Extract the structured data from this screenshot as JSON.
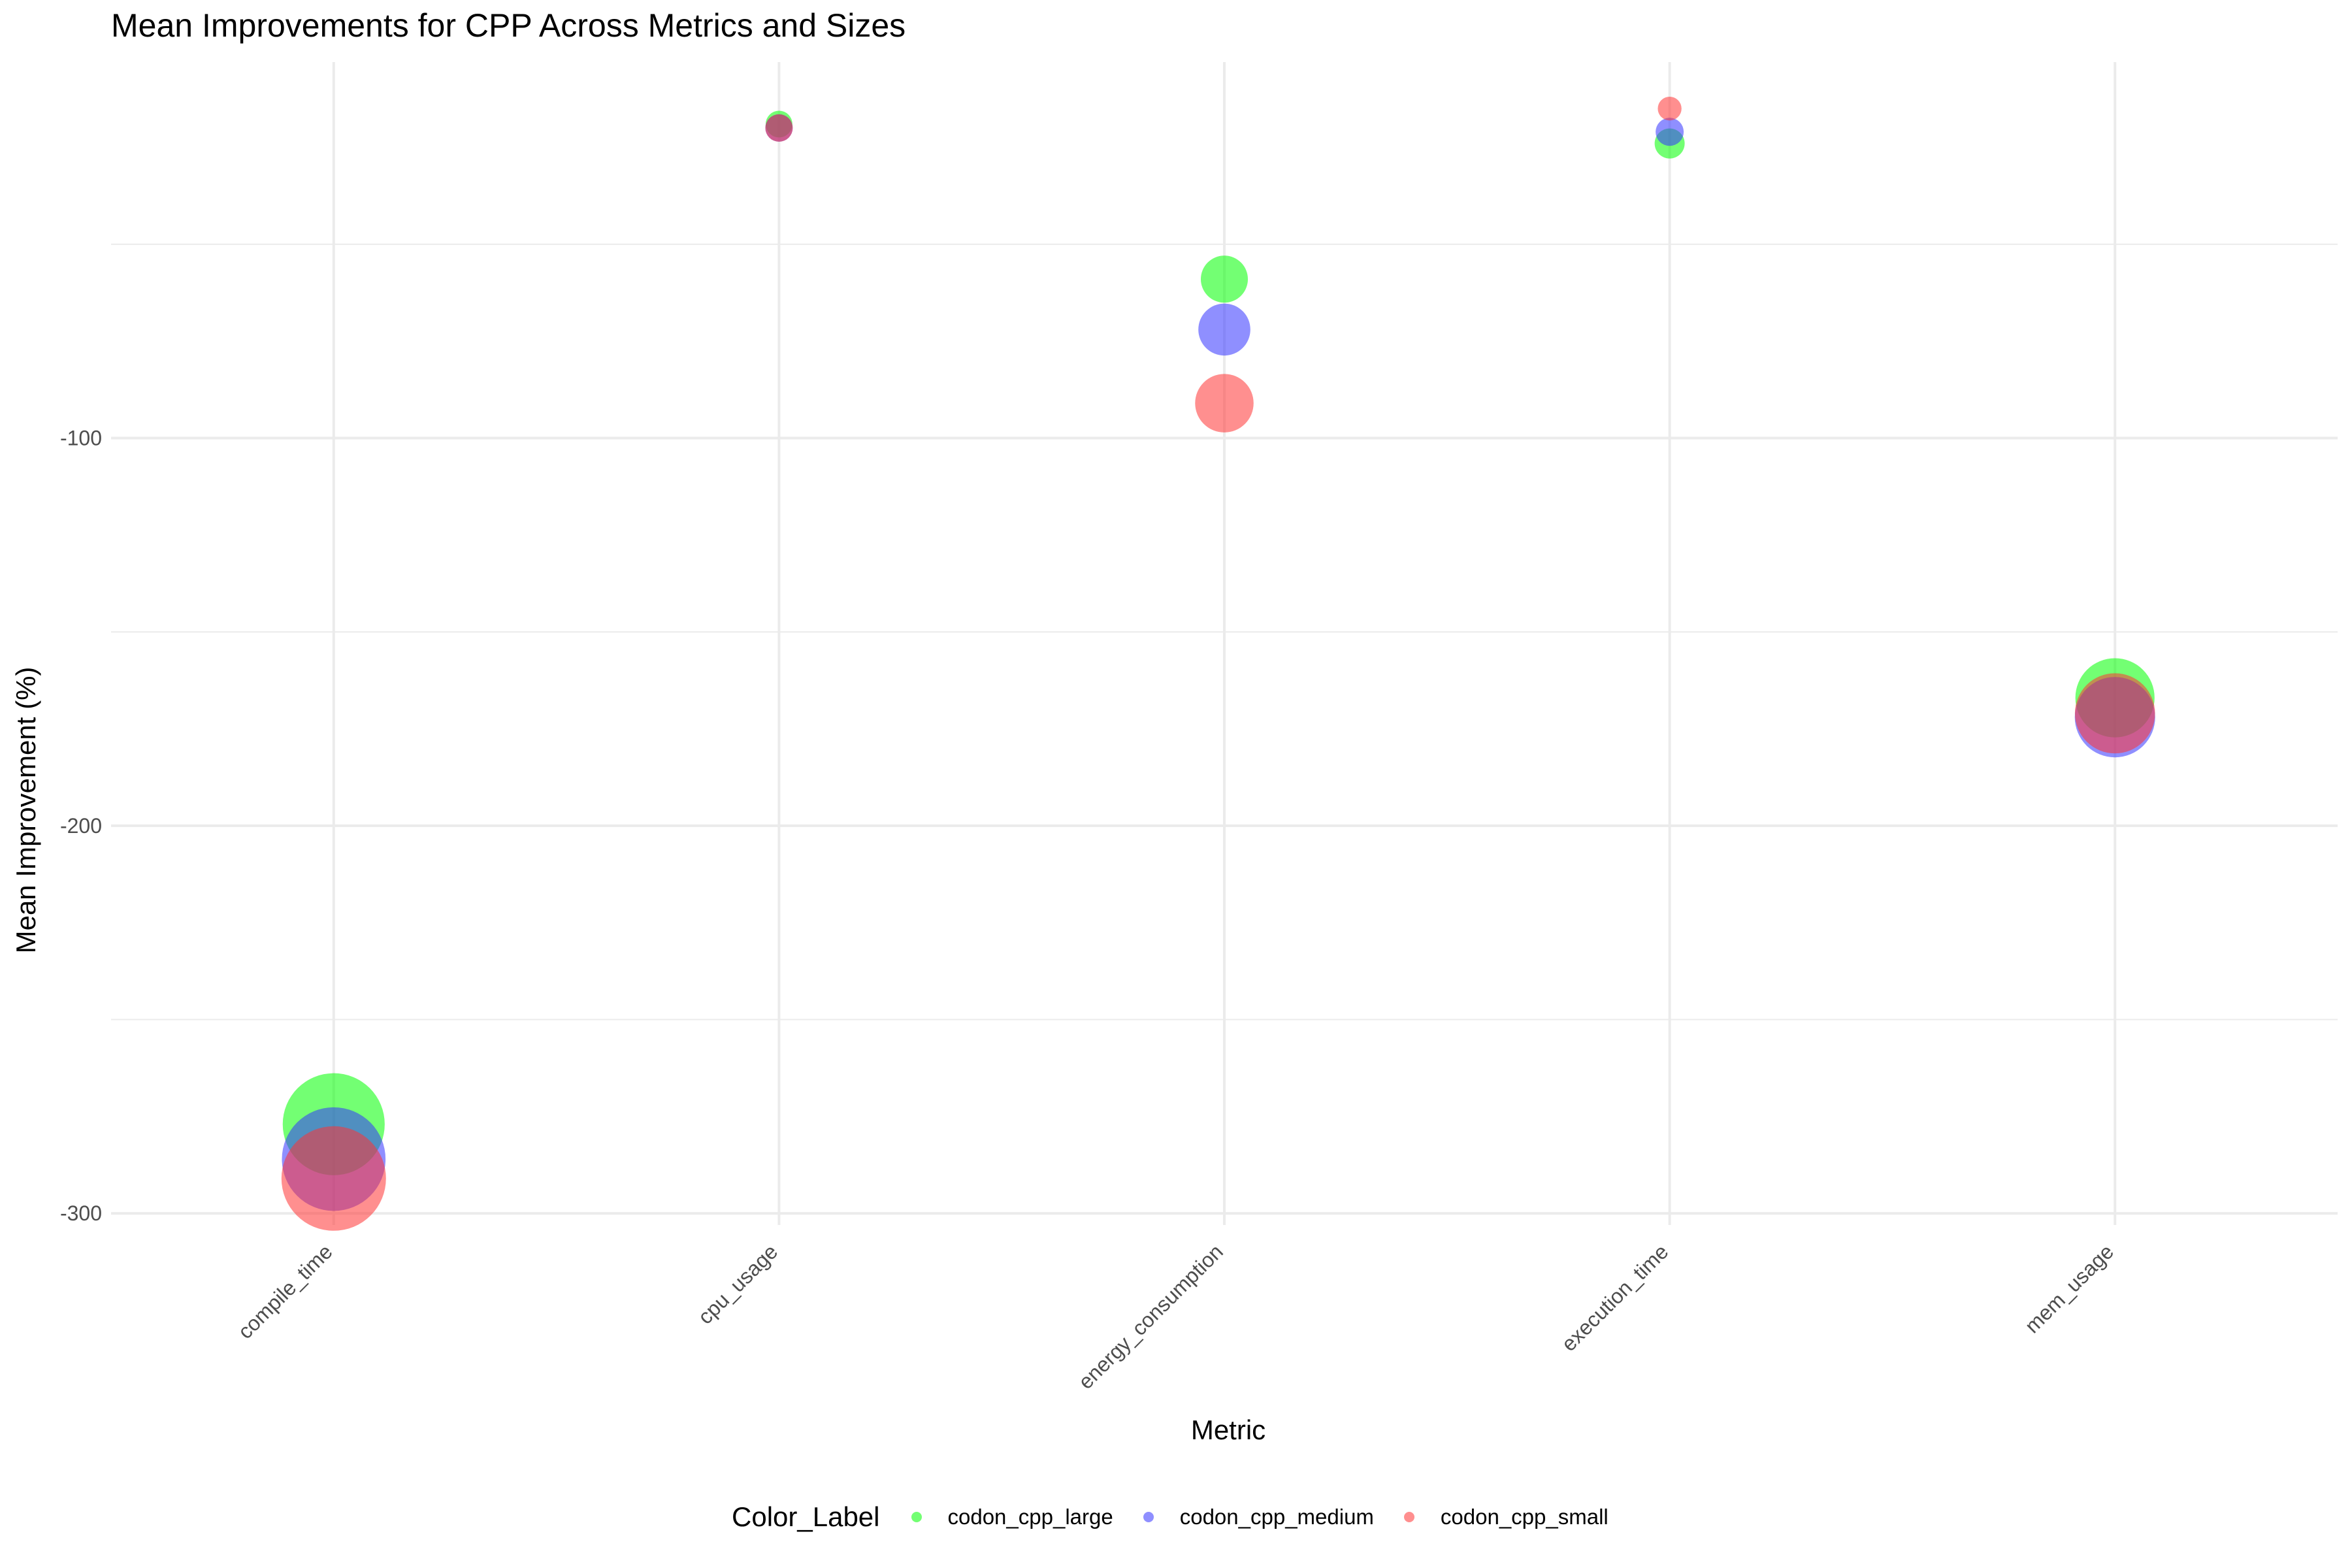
{
  "chart_data": {
    "type": "scatter",
    "title": "Mean Improvements for CPP Across Metrics and Sizes",
    "xlabel": "Metric",
    "ylabel": "Mean Improvement (%)",
    "categories": [
      "compile_time",
      "cpu_usage",
      "energy_consumption",
      "execution_time",
      "mem_usage"
    ],
    "ylim": [
      -303,
      -3
    ],
    "yticks": [
      -300,
      -200,
      -100
    ],
    "grid": true,
    "legend": {
      "title": "Color_Label",
      "position": "bottom"
    },
    "series": [
      {
        "name": "codon_cpp_large",
        "color": "#00FF00",
        "values": [
          -277,
          -19,
          -59,
          -24,
          -167
        ],
        "size": [
          277,
          19,
          59,
          24,
          167
        ]
      },
      {
        "name": "codon_cpp_medium",
        "color": "#3333FF",
        "values": [
          -286,
          -20,
          -72,
          -21,
          -172
        ],
        "size": [
          286,
          20,
          72,
          21,
          172
        ]
      },
      {
        "name": "codon_cpp_small",
        "color": "#FF3333",
        "values": [
          -291,
          -20,
          -91,
          -15,
          -171
        ],
        "size": [
          291,
          20,
          91,
          15,
          171
        ]
      }
    ]
  }
}
